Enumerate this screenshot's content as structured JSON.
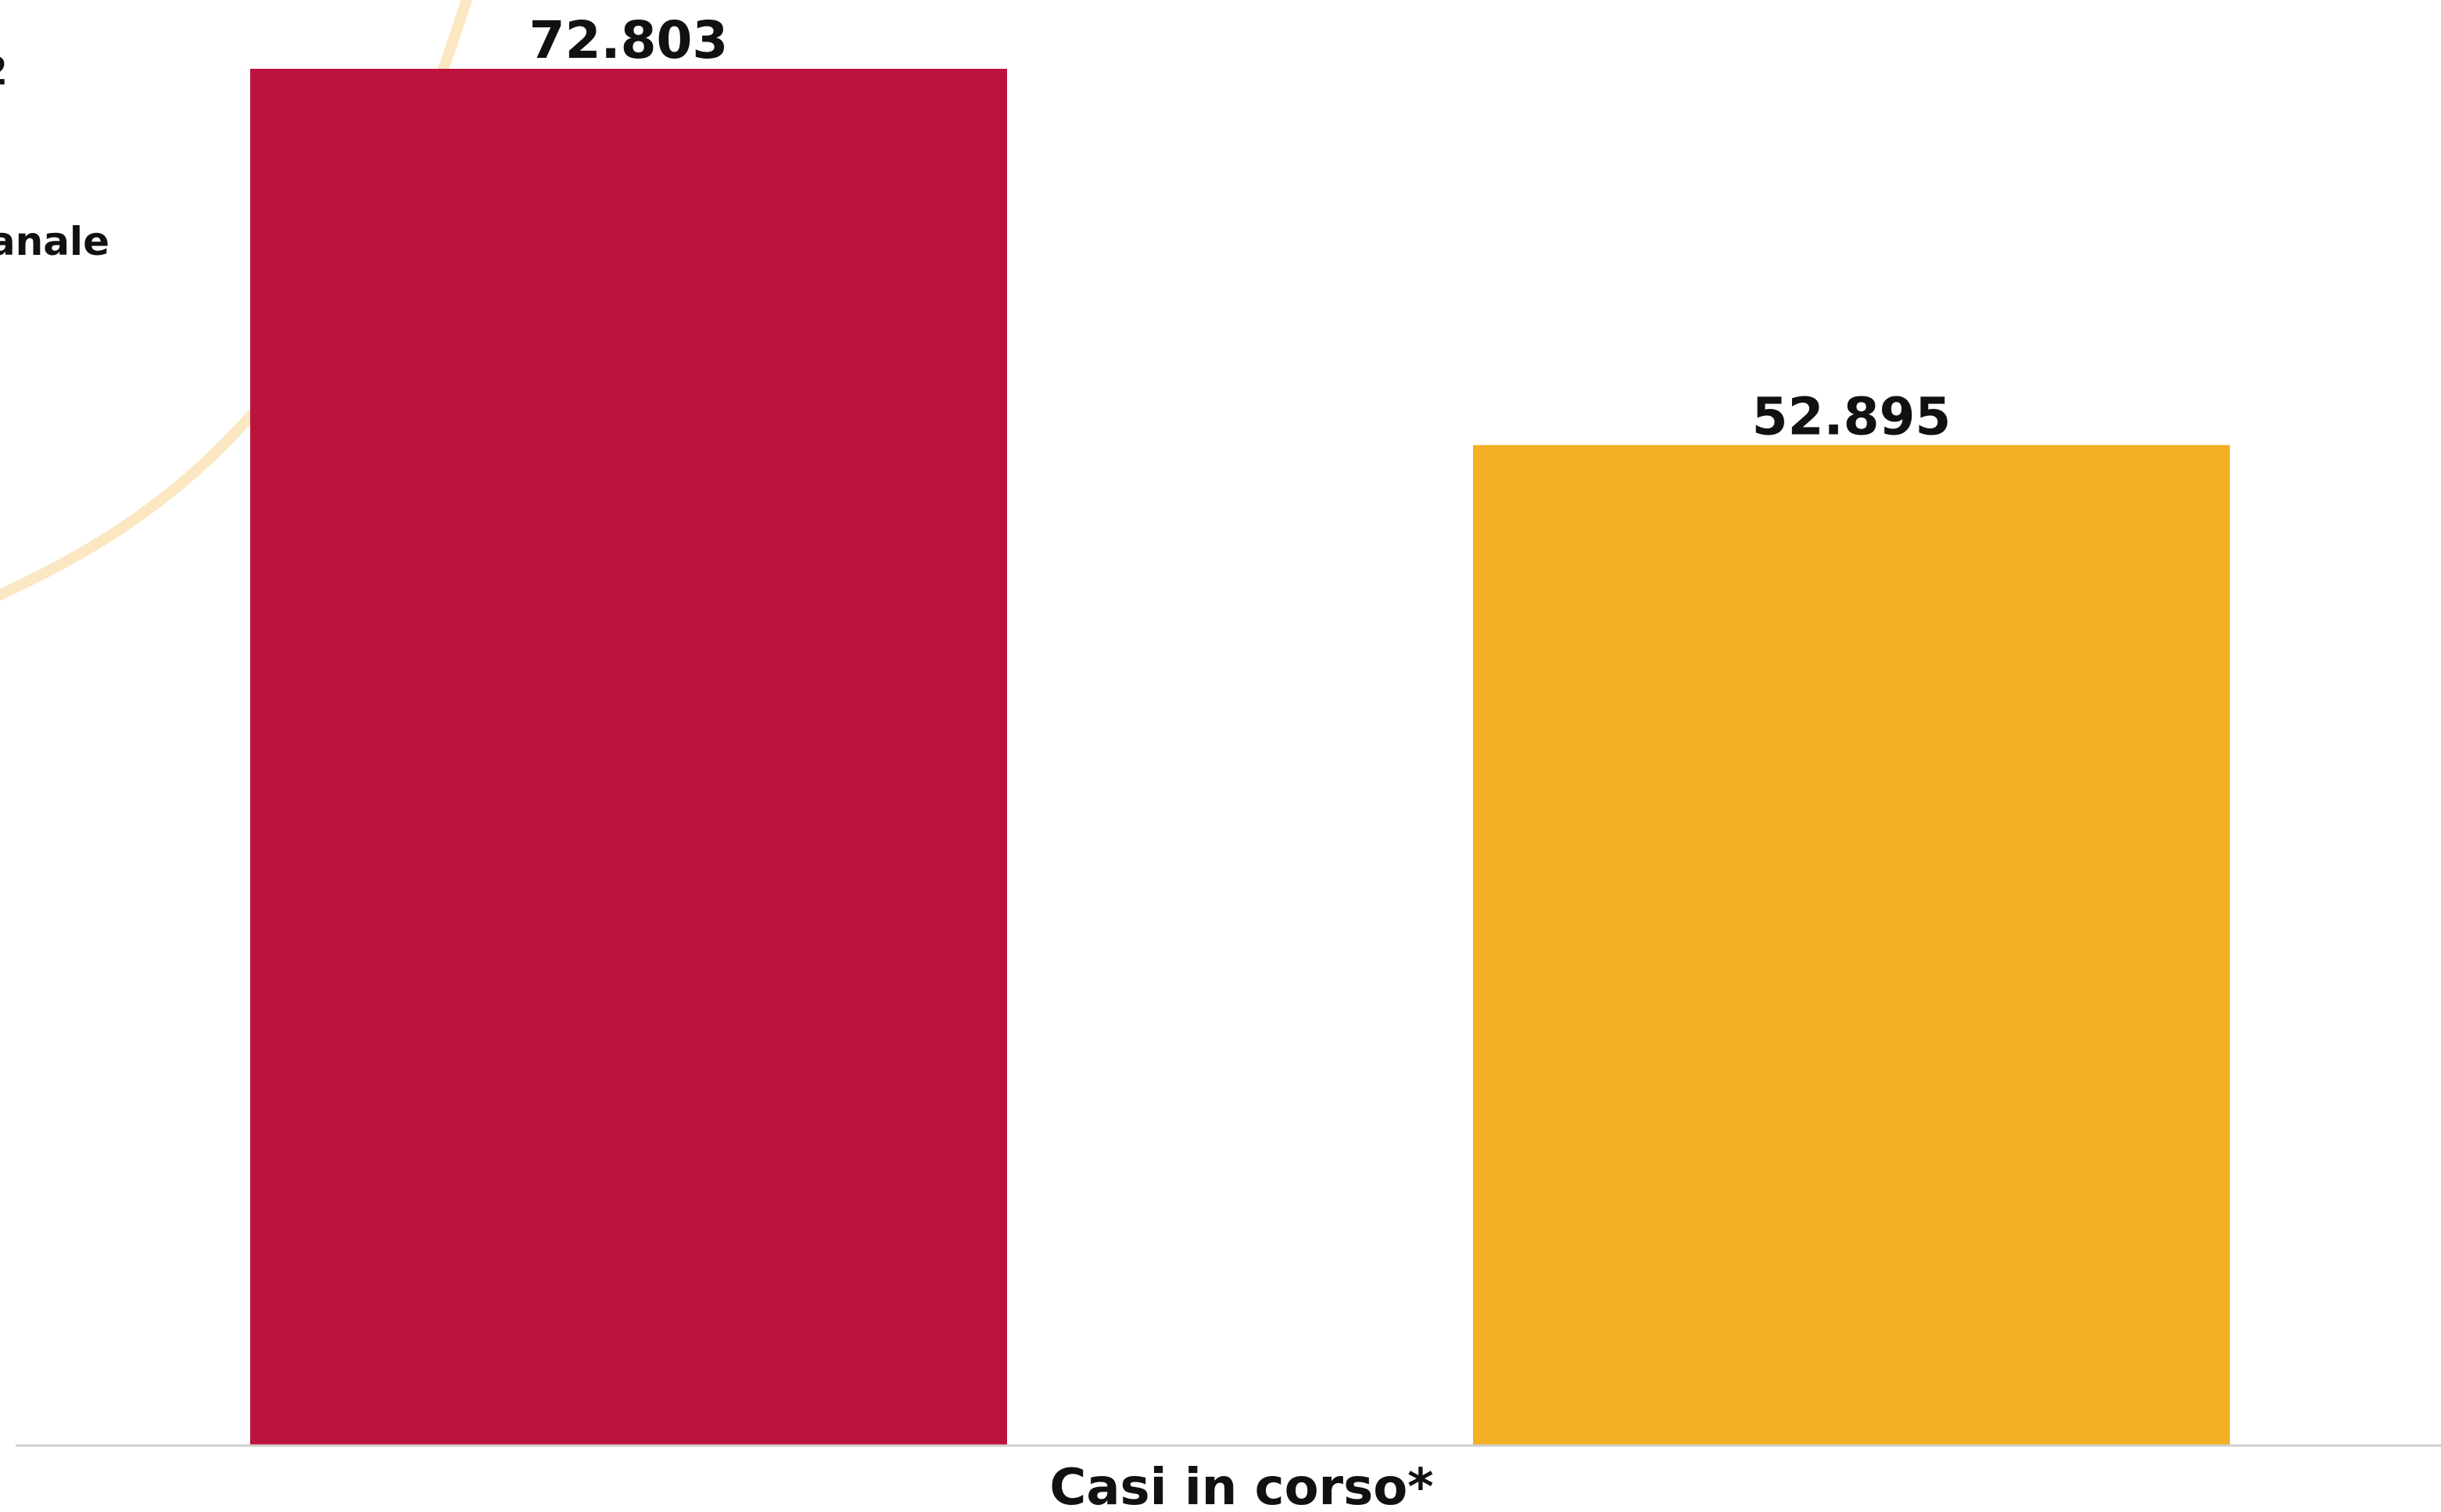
{
  "chart_data": {
    "type": "bar",
    "categories": [
      "Casi in corso*"
    ],
    "series": [
      {
        "name": "",
        "color": "#BC133C",
        "values": [
          72803
        ],
        "value_labels": [
          "72.803"
        ]
      },
      {
        "name": "",
        "color": "#F4B024",
        "values": [
          52895
        ],
        "value_labels": [
          "52.895"
        ]
      }
    ],
    "ylim": [
      0,
      72803
    ],
    "grid": false,
    "legend": {
      "placement": "top-left-clipped",
      "partial_texts": [
        "2",
        "anale"
      ]
    },
    "colors": {
      "baseline": "#CFCFCF",
      "decorative_arc": "#FBE7C2"
    }
  }
}
